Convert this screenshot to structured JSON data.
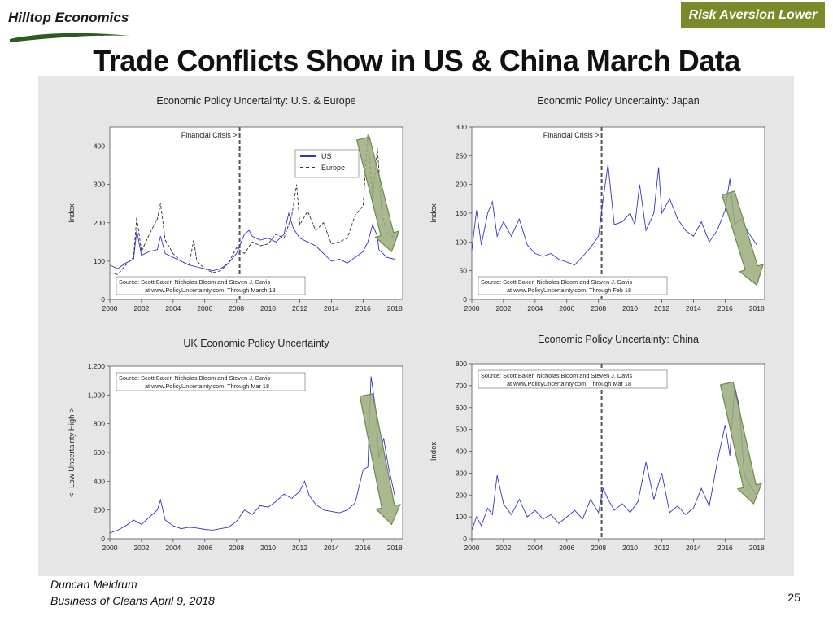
{
  "header": {
    "logo_text": "Hilltop Economics",
    "badge": "Risk Aversion Lower",
    "title": "Trade Conflicts Show in US & China March Data"
  },
  "footer": {
    "author": "Duncan Meldrum",
    "event": "Business of Cleans April 9, 2018",
    "page": "25"
  },
  "colors": {
    "us": "#3333cc",
    "europe": "#333333",
    "arrow_fill": "#9aab7a",
    "arrow_stroke": "#6f8a4f",
    "badge": "#7a8a2a"
  },
  "chart_data": [
    {
      "type": "line",
      "title": "Economic Policy Uncertainty: U.S. & Europe",
      "ylabel": "Index",
      "xlim": [
        2000,
        2018.5
      ],
      "ylim": [
        0,
        450
      ],
      "x_ticks": [
        "2000",
        "2002",
        "2004",
        "2006",
        "2008",
        "2010",
        "2012",
        "2014",
        "2016",
        "2018"
      ],
      "y_ticks": [
        "0",
        "100",
        "200",
        "300",
        "400"
      ],
      "y_tick_values": [
        0,
        100,
        200,
        300,
        400
      ],
      "vline_x": 2008.2,
      "vline_label": "Financial Crisis >",
      "source_lines": [
        "Source: Scott Baker, Nicholas Bloom and Steven J. Davis",
        "at www.PolicyUncertainty.com. Through March 18"
      ],
      "legend": [
        "US",
        "Europe"
      ],
      "arrow": {
        "x1": 2016.0,
        "y1": 420,
        "x2": 2017.8,
        "y2": 125
      },
      "series": [
        {
          "name": "US",
          "style": "solid",
          "x": [
            2000,
            2000.5,
            2001,
            2001.5,
            2001.7,
            2002,
            2002.5,
            2003,
            2003.2,
            2003.5,
            2004,
            2004.5,
            2005,
            2005.5,
            2006,
            2006.5,
            2007,
            2007.5,
            2008,
            2008.5,
            2008.8,
            2009,
            2009.5,
            2010,
            2010.5,
            2011,
            2011.3,
            2011.6,
            2012,
            2012.5,
            2013,
            2013.5,
            2014,
            2014.5,
            2015,
            2015.5,
            2016,
            2016.3,
            2016.6,
            2016.9,
            2017,
            2017.5,
            2018
          ],
          "y": [
            90,
            80,
            95,
            105,
            180,
            115,
            125,
            130,
            165,
            120,
            110,
            100,
            90,
            85,
            80,
            75,
            80,
            95,
            120,
            170,
            180,
            165,
            155,
            160,
            150,
            170,
            225,
            185,
            160,
            150,
            140,
            120,
            100,
            105,
            95,
            110,
            125,
            150,
            195,
            165,
            130,
            110,
            105
          ]
        },
        {
          "name": "Europe",
          "style": "dashed",
          "x": [
            2000,
            2000.5,
            2001,
            2001.5,
            2001.7,
            2002,
            2002.5,
            2003,
            2003.2,
            2003.5,
            2004,
            2004.5,
            2005,
            2005.3,
            2005.5,
            2006,
            2006.5,
            2007,
            2007.5,
            2008,
            2008.5,
            2009,
            2009.5,
            2010,
            2010.5,
            2011,
            2011.5,
            2011.8,
            2012,
            2012.5,
            2013,
            2013.5,
            2014,
            2014.5,
            2015,
            2015.5,
            2016,
            2016.3,
            2016.6,
            2016.9,
            2017.2,
            2017.5,
            2018
          ],
          "y": [
            70,
            65,
            90,
            110,
            215,
            125,
            170,
            210,
            250,
            155,
            120,
            100,
            90,
            155,
            100,
            80,
            70,
            75,
            95,
            135,
            120,
            150,
            140,
            145,
            170,
            160,
            220,
            300,
            195,
            230,
            180,
            200,
            145,
            150,
            160,
            220,
            245,
            430,
            260,
            395,
            220,
            175,
            160
          ]
        }
      ]
    },
    {
      "type": "line",
      "title": "Economic Policy Uncertainty: Japan",
      "ylabel": "Index",
      "xlim": [
        2000,
        2018.5
      ],
      "ylim": [
        0,
        300
      ],
      "x_ticks": [
        "2000",
        "2002",
        "2004",
        "2006",
        "2008",
        "2010",
        "2012",
        "2014",
        "2016",
        "2018"
      ],
      "y_ticks": [
        "0",
        "50",
        "100",
        "150",
        "200",
        "250",
        "300"
      ],
      "y_tick_values": [
        0,
        50,
        100,
        150,
        200,
        250,
        300
      ],
      "vline_x": 2008.2,
      "vline_label": "Financial Crisis >",
      "source_lines": [
        "Source: Scott Baker, Nicholas Bloom and Steven J. Davis",
        "at www.PolicyUncertainty.com. Through Feb 18"
      ],
      "arrow": {
        "x1": 2016.2,
        "y1": 185,
        "x2": 2018.0,
        "y2": 25
      },
      "series": [
        {
          "name": "",
          "style": "solid",
          "x": [
            2000,
            2000.3,
            2000.6,
            2001,
            2001.3,
            2001.6,
            2002,
            2002.5,
            2003,
            2003.5,
            2004,
            2004.5,
            2005,
            2005.5,
            2006,
            2006.5,
            2007,
            2007.5,
            2008,
            2008.3,
            2008.6,
            2009,
            2009.5,
            2010,
            2010.3,
            2010.6,
            2011,
            2011.5,
            2011.8,
            2012,
            2012.5,
            2013,
            2013.5,
            2014,
            2014.5,
            2015,
            2015.5,
            2016,
            2016.3,
            2016.6,
            2017,
            2017.5,
            2018
          ],
          "y": [
            85,
            155,
            95,
            150,
            170,
            110,
            135,
            110,
            140,
            95,
            80,
            75,
            80,
            70,
            65,
            60,
            75,
            90,
            110,
            175,
            235,
            130,
            135,
            150,
            130,
            200,
            120,
            150,
            230,
            150,
            175,
            140,
            120,
            110,
            135,
            100,
            120,
            155,
            210,
            130,
            140,
            115,
            95
          ]
        }
      ]
    },
    {
      "type": "line",
      "title": "UK Economic Policy Uncertainty",
      "ylabel": "<- Low    Uncertainty    High->",
      "xlim": [
        2000,
        2018.5
      ],
      "ylim": [
        0,
        1200
      ],
      "x_ticks": [
        "2000",
        "2002",
        "2004",
        "2006",
        "2008",
        "2010",
        "2012",
        "2014",
        "2016",
        "2018"
      ],
      "y_ticks": [
        "0",
        "200",
        "400",
        "600",
        "800",
        "1,000",
        "1,200"
      ],
      "y_tick_values": [
        0,
        200,
        400,
        600,
        800,
        1000,
        1200
      ],
      "source_lines": [
        "Source: Scott Baker, Nicholas Bloom and Steven J. Davis",
        "at www.PolicyUncertainty.com. Through Mar 18"
      ],
      "arrow": {
        "x1": 2016.2,
        "y1": 1000,
        "x2": 2017.8,
        "y2": 100
      },
      "series": [
        {
          "name": "",
          "style": "solid",
          "x": [
            2000,
            2000.5,
            2001,
            2001.5,
            2002,
            2002.5,
            2003,
            2003.2,
            2003.5,
            2004,
            2004.5,
            2005,
            2005.5,
            2006,
            2006.5,
            2007,
            2007.5,
            2008,
            2008.5,
            2009,
            2009.5,
            2010,
            2010.5,
            2011,
            2011.5,
            2012,
            2012.3,
            2012.6,
            2013,
            2013.5,
            2014,
            2014.5,
            2015,
            2015.5,
            2016,
            2016.3,
            2016.5,
            2016.8,
            2017,
            2017.3,
            2017.6,
            2018
          ],
          "y": [
            40,
            60,
            90,
            130,
            100,
            150,
            200,
            270,
            130,
            90,
            70,
            80,
            75,
            65,
            60,
            70,
            80,
            120,
            200,
            170,
            230,
            220,
            260,
            310,
            280,
            330,
            400,
            300,
            240,
            200,
            190,
            180,
            200,
            250,
            480,
            500,
            1130,
            900,
            560,
            700,
            500,
            300
          ]
        }
      ]
    },
    {
      "type": "line",
      "title": "Economic Policy Uncertainty: China",
      "ylabel": "Index",
      "xlim": [
        2000,
        2018.5
      ],
      "ylim": [
        0,
        800
      ],
      "x_ticks": [
        "2000",
        "2002",
        "2004",
        "2006",
        "2008",
        "2010",
        "2012",
        "2014",
        "2016",
        "2018"
      ],
      "y_ticks": [
        "0",
        "100",
        "200",
        "300",
        "400",
        "500",
        "600",
        "700",
        "800"
      ],
      "y_tick_values": [
        0,
        100,
        200,
        300,
        400,
        500,
        600,
        700,
        800
      ],
      "vline_x": 2008.2,
      "source_lines": [
        "Source: Scott Baker, Nicholas Bloom and Steven J. Davis",
        "at www.PolicyUncertainty.com. Through Mar 18"
      ],
      "arrow": {
        "x1": 2016.1,
        "y1": 710,
        "x2": 2017.8,
        "y2": 160
      },
      "series": [
        {
          "name": "",
          "style": "solid",
          "x": [
            2000,
            2000.3,
            2000.6,
            2001,
            2001.3,
            2001.6,
            2002,
            2002.5,
            2003,
            2003.5,
            2004,
            2004.5,
            2005,
            2005.5,
            2006,
            2006.5,
            2007,
            2007.5,
            2008,
            2008.3,
            2008.6,
            2009,
            2009.5,
            2010,
            2010.5,
            2011,
            2011.5,
            2012,
            2012.5,
            2013,
            2013.5,
            2014,
            2014.5,
            2015,
            2015.5,
            2016,
            2016.3,
            2016.6,
            2016.9,
            2017.2,
            2017.5,
            2018
          ],
          "y": [
            40,
            100,
            60,
            140,
            110,
            290,
            160,
            110,
            180,
            100,
            130,
            90,
            110,
            70,
            100,
            130,
            90,
            180,
            120,
            230,
            180,
            130,
            160,
            120,
            170,
            350,
            180,
            300,
            120,
            150,
            110,
            140,
            230,
            150,
            350,
            520,
            380,
            700,
            600,
            300,
            250,
            200
          ]
        }
      ]
    }
  ]
}
